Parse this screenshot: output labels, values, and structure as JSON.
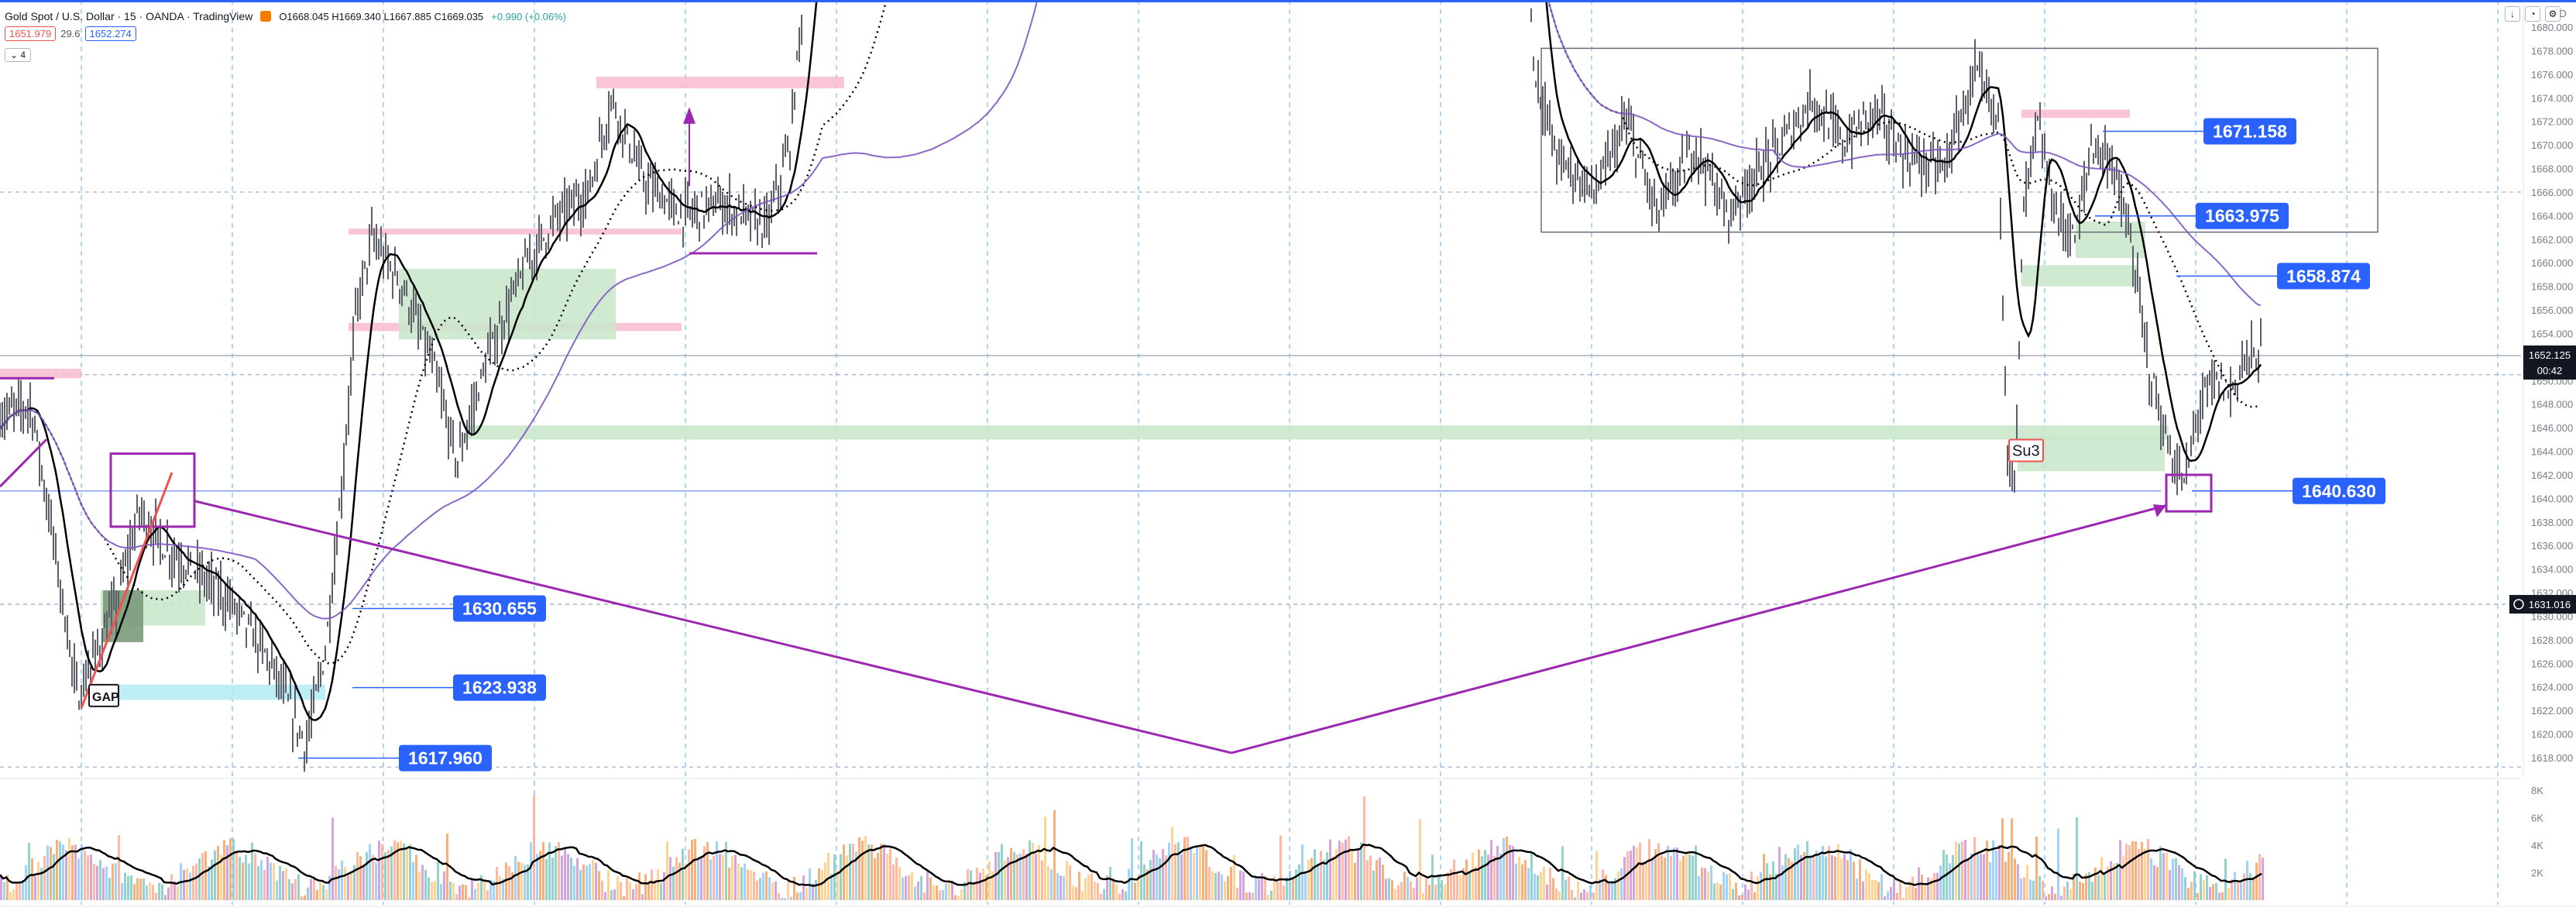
{
  "header": {
    "symbol": "Gold Spot / U.S. Dollar · 15 · OANDA · TradingView",
    "ohlc": "O1668.045 H1669.340 L1667.885 C1669.035",
    "change": "+0.990 (+0.06%)",
    "bid": "1651.979",
    "spread": "29.6",
    "ask": "1652.274",
    "indicator_count": "4",
    "currency": "USD"
  },
  "toolbar_icons": [
    "arrow-down-icon",
    "bell-icon",
    "gear-icon"
  ],
  "colors": {
    "price_line": "#5d606b",
    "ma_fast": "#000000",
    "ma_slow": "#7e57c2",
    "annotation_purple": "#9c27b0",
    "label_blue": "#2962ff",
    "supply_zone": "#f8bbd0",
    "demand_zone": "#c8e6c9",
    "gap_zone": "#b2ebf2",
    "trend_red": "#ef5350"
  },
  "chart_data": {
    "type": "line",
    "timeframe": "15",
    "y_axis": {
      "range": [
        1616,
        1680
      ],
      "ticks": [
        1618,
        1620,
        1622,
        1624,
        1626,
        1628,
        1630,
        1632,
        1634,
        1636,
        1638,
        1640,
        1642,
        1644,
        1646,
        1648,
        1650,
        1652,
        1654,
        1656,
        1658,
        1660,
        1662,
        1664,
        1666,
        1668,
        1670,
        1672,
        1674,
        1676,
        1678,
        1680
      ]
    },
    "current_price": {
      "value": "1652.125",
      "countdown": "00:42"
    },
    "crosshair_price": "1631.016",
    "price_labels": [
      {
        "text": "1671.158",
        "value": 1671.158
      },
      {
        "text": "1663.975",
        "value": 1663.975
      },
      {
        "text": "1658.874",
        "value": 1658.874
      },
      {
        "text": "1640.630",
        "value": 1640.63
      },
      {
        "text": "1630.655",
        "value": 1630.655
      },
      {
        "text": "1623.938",
        "value": 1623.938
      },
      {
        "text": "1617.960",
        "value": 1617.96
      }
    ],
    "text_annotations": [
      {
        "text": "GAP",
        "value": 1623.2
      },
      {
        "text": "Su3",
        "value": 1644.0
      }
    ],
    "zones": [
      {
        "kind": "supply",
        "from": 1650.2,
        "to": 1651.0
      },
      {
        "kind": "supply",
        "from": 1674.8,
        "to": 1675.8
      },
      {
        "kind": "supply",
        "from": 1662.4,
        "to": 1662.9
      },
      {
        "kind": "supply",
        "from": 1654.2,
        "to": 1654.9
      },
      {
        "kind": "supply",
        "from": 1672.3,
        "to": 1673.0
      },
      {
        "kind": "demand",
        "from": 1653.5,
        "to": 1659.5
      },
      {
        "kind": "demand",
        "from": 1645.0,
        "to": 1646.2
      },
      {
        "kind": "demand",
        "from": 1642.3,
        "to": 1645.3
      },
      {
        "kind": "demand",
        "from": 1658.0,
        "to": 1659.8
      },
      {
        "kind": "demand",
        "from": 1660.4,
        "to": 1663.5
      },
      {
        "kind": "demand",
        "from": 1629.2,
        "to": 1632.2
      },
      {
        "kind": "gap",
        "from": 1622.9,
        "to": 1624.2
      }
    ],
    "volume_axis": {
      "ticks": [
        "2K",
        "4K",
        "6K",
        "8K"
      ],
      "values": [
        2000,
        4000,
        6000,
        8000
      ]
    }
  }
}
